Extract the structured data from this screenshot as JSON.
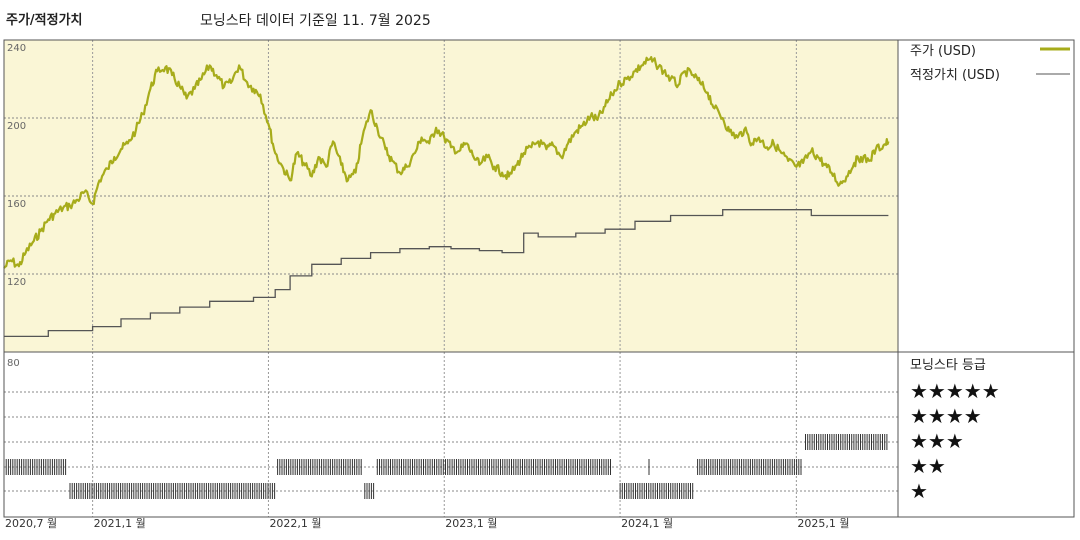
{
  "header": {
    "title": "주가/적정가치",
    "subtitle": "모닝스타 데이터 기준일 11. 7월 2025"
  },
  "colors": {
    "price": "#a7ac1b",
    "fair_value": "#555555",
    "upper_bg": "#faf6d6",
    "rating_bar": "#333333"
  },
  "chart_data": [
    {
      "type": "line",
      "x_unit": "date",
      "x_range": [
        "2020-07-01",
        "2025-07-11"
      ],
      "ylim": [
        80,
        240
      ],
      "yticks": [
        "80",
        "120",
        "160",
        "200",
        "240"
      ],
      "grid": true,
      "legend_position": "right",
      "series": [
        {
          "name": "주가 (USD)",
          "points": [
            [
              "2020-07-01",
              123
            ],
            [
              "2020-07-15",
              127
            ],
            [
              "2020-08-01",
              124
            ],
            [
              "2020-08-15",
              131
            ],
            [
              "2020-09-01",
              137
            ],
            [
              "2020-09-15",
              142
            ],
            [
              "2020-10-01",
              148
            ],
            [
              "2020-10-15",
              151
            ],
            [
              "2020-11-01",
              154
            ],
            [
              "2020-11-15",
              155
            ],
            [
              "2020-12-01",
              158
            ],
            [
              "2020-12-15",
              162
            ],
            [
              "2021-01-01",
              156
            ],
            [
              "2021-01-15",
              168
            ],
            [
              "2021-02-01",
              174
            ],
            [
              "2021-02-15",
              180
            ],
            [
              "2021-03-01",
              184
            ],
            [
              "2021-03-15",
              187
            ],
            [
              "2021-04-01",
              194
            ],
            [
              "2021-04-15",
              202
            ],
            [
              "2021-05-01",
              215
            ],
            [
              "2021-05-15",
              224
            ],
            [
              "2021-06-01",
              226
            ],
            [
              "2021-06-15",
              222
            ],
            [
              "2021-07-01",
              216
            ],
            [
              "2021-07-15",
              210
            ],
            [
              "2021-08-01",
              215
            ],
            [
              "2021-08-15",
              220
            ],
            [
              "2021-09-01",
              227
            ],
            [
              "2021-09-15",
              222
            ],
            [
              "2021-10-01",
              216
            ],
            [
              "2021-10-15",
              218
            ],
            [
              "2021-11-01",
              227
            ],
            [
              "2021-11-15",
              219
            ],
            [
              "2021-12-01",
              215
            ],
            [
              "2021-12-15",
              212
            ],
            [
              "2022-01-01",
              197
            ],
            [
              "2022-01-15",
              182
            ],
            [
              "2022-02-01",
              174
            ],
            [
              "2022-02-15",
              168
            ],
            [
              "2022-03-01",
              182
            ],
            [
              "2022-03-15",
              177
            ],
            [
              "2022-04-01",
              170
            ],
            [
              "2022-04-15",
              180
            ],
            [
              "2022-05-01",
              175
            ],
            [
              "2022-05-15",
              188
            ],
            [
              "2022-06-01",
              176
            ],
            [
              "2022-06-15",
              168
            ],
            [
              "2022-07-01",
              172
            ],
            [
              "2022-07-15",
              190
            ],
            [
              "2022-08-01",
              204
            ],
            [
              "2022-08-15",
              195
            ],
            [
              "2022-09-01",
              184
            ],
            [
              "2022-09-15",
              178
            ],
            [
              "2022-10-01",
              172
            ],
            [
              "2022-10-15",
              175
            ],
            [
              "2022-11-01",
              182
            ],
            [
              "2022-11-15",
              190
            ],
            [
              "2022-12-01",
              187
            ],
            [
              "2022-12-15",
              195
            ],
            [
              "2023-01-01",
              190
            ],
            [
              "2023-01-15",
              185
            ],
            [
              "2023-02-01",
              183
            ],
            [
              "2023-02-15",
              187
            ],
            [
              "2023-03-01",
              181
            ],
            [
              "2023-03-15",
              176
            ],
            [
              "2023-04-01",
              180
            ],
            [
              "2023-04-15",
              175
            ],
            [
              "2023-05-01",
              172
            ],
            [
              "2023-05-15",
              170
            ],
            [
              "2023-06-01",
              176
            ],
            [
              "2023-06-15",
              182
            ],
            [
              "2023-07-01",
              185
            ],
            [
              "2023-07-15",
              188
            ],
            [
              "2023-08-01",
              184
            ],
            [
              "2023-08-15",
              186
            ],
            [
              "2023-09-01",
              180
            ],
            [
              "2023-09-15",
              187
            ],
            [
              "2023-10-01",
              193
            ],
            [
              "2023-10-15",
              196
            ],
            [
              "2023-11-01",
              201
            ],
            [
              "2023-11-15",
              199
            ],
            [
              "2023-12-01",
              206
            ],
            [
              "2023-12-15",
              212
            ],
            [
              "2024-01-01",
              218
            ],
            [
              "2024-01-15",
              220
            ],
            [
              "2024-02-01",
              224
            ],
            [
              "2024-02-15",
              227
            ],
            [
              "2024-03-01",
              230
            ],
            [
              "2024-03-15",
              228
            ],
            [
              "2024-04-01",
              224
            ],
            [
              "2024-04-15",
              220
            ],
            [
              "2024-05-01",
              217
            ],
            [
              "2024-05-15",
              224
            ],
            [
              "2024-06-01",
              222
            ],
            [
              "2024-06-15",
              218
            ],
            [
              "2024-07-01",
              213
            ],
            [
              "2024-07-15",
              205
            ],
            [
              "2024-08-01",
              200
            ],
            [
              "2024-08-15",
              193
            ],
            [
              "2024-09-01",
              190
            ],
            [
              "2024-09-15",
              194
            ],
            [
              "2024-10-01",
              187
            ],
            [
              "2024-10-15",
              190
            ],
            [
              "2024-11-01",
              185
            ],
            [
              "2024-11-15",
              187
            ],
            [
              "2024-12-01",
              182
            ],
            [
              "2024-12-15",
              178
            ],
            [
              "2025-01-01",
              175
            ],
            [
              "2025-01-15",
              177
            ],
            [
              "2025-02-01",
              183
            ],
            [
              "2025-02-15",
              180
            ],
            [
              "2025-03-01",
              176
            ],
            [
              "2025-03-15",
              172
            ],
            [
              "2025-04-01",
              166
            ],
            [
              "2025-04-15",
              170
            ],
            [
              "2025-05-01",
              177
            ],
            [
              "2025-05-15",
              180
            ],
            [
              "2025-06-01",
              178
            ],
            [
              "2025-06-15",
              184
            ],
            [
              "2025-07-01",
              186
            ],
            [
              "2025-07-11",
              188
            ]
          ]
        },
        {
          "name": "적정가치 (USD)",
          "step": true,
          "points": [
            [
              "2020-07-01",
              88
            ],
            [
              "2020-10-01",
              91
            ],
            [
              "2021-01-01",
              93
            ],
            [
              "2021-03-01",
              97
            ],
            [
              "2021-05-01",
              100
            ],
            [
              "2021-07-01",
              103
            ],
            [
              "2021-09-01",
              106
            ],
            [
              "2021-12-01",
              108
            ],
            [
              "2022-01-15",
              112
            ],
            [
              "2022-02-15",
              119
            ],
            [
              "2022-04-01",
              125
            ],
            [
              "2022-06-01",
              128
            ],
            [
              "2022-08-01",
              131
            ],
            [
              "2022-10-01",
              133
            ],
            [
              "2022-12-01",
              134
            ],
            [
              "2023-01-15",
              133
            ],
            [
              "2023-03-15",
              132
            ],
            [
              "2023-05-01",
              131
            ],
            [
              "2023-06-15",
              141
            ],
            [
              "2023-07-15",
              139
            ],
            [
              "2023-10-01",
              141
            ],
            [
              "2023-12-01",
              143
            ],
            [
              "2024-02-01",
              147
            ],
            [
              "2024-04-15",
              150
            ],
            [
              "2024-08-01",
              153
            ],
            [
              "2024-11-01",
              153
            ],
            [
              "2025-02-01",
              150
            ],
            [
              "2025-07-11",
              150
            ]
          ]
        }
      ]
    },
    {
      "type": "rating-timeline",
      "title": "모닝스타 등급",
      "ytick": "80",
      "levels": [
        "★★★★★",
        "★★★★",
        "★★★",
        "★★",
        "★"
      ],
      "x_ticks": [
        "2020,7 월",
        "2021,1 월",
        "2022,1 월",
        "2023,1 월",
        "2024,1 월",
        "2025,1 월"
      ],
      "ratings": [
        {
          "from": "2020-07-01",
          "to": "2020-11-10",
          "stars": 2
        },
        {
          "from": "2020-11-15",
          "to": "2022-01-15",
          "stars": 1
        },
        {
          "from": "2022-01-20",
          "to": "2022-07-15",
          "stars": 2
        },
        {
          "from": "2022-07-20",
          "to": "2022-08-10",
          "stars": 1
        },
        {
          "from": "2022-08-15",
          "to": "2023-12-15",
          "stars": 2
        },
        {
          "from": "2024-01-01",
          "to": "2024-06-01",
          "stars": 1
        },
        {
          "from": "2024-03-01",
          "to": "2024-03-05",
          "stars": 2
        },
        {
          "from": "2024-06-10",
          "to": "2025-01-15",
          "stars": 2
        },
        {
          "from": "2025-01-20",
          "to": "2025-07-11",
          "stars": 3
        }
      ]
    }
  ]
}
